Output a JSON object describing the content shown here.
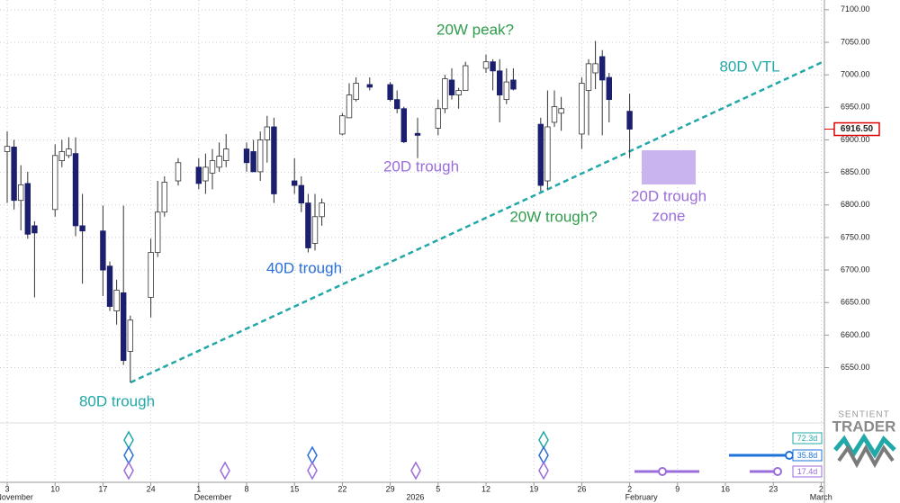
{
  "chart_data": {
    "type": "candlestick",
    "categories": [
      null,
      "3",
      null,
      null,
      null,
      null,
      null,
      null,
      "10",
      null,
      null,
      null,
      null,
      null,
      null,
      "17",
      null,
      null,
      null,
      null,
      null,
      null,
      "24",
      null,
      null,
      null,
      null,
      null,
      null,
      "1",
      null,
      null,
      null,
      null,
      null,
      null,
      "8",
      null,
      null,
      null,
      null,
      null,
      null,
      "15",
      null,
      null,
      null,
      null,
      null,
      null,
      "22",
      null,
      null,
      null,
      null,
      null,
      null,
      "29",
      null,
      null,
      null,
      null,
      null,
      null,
      "5",
      null,
      null,
      null,
      null,
      null,
      null,
      "12",
      null,
      null,
      null,
      null,
      null,
      null,
      "19",
      null,
      null,
      null,
      null,
      null,
      null,
      "26",
      null,
      null,
      null,
      null,
      null,
      null,
      "2",
      null,
      null,
      null,
      null,
      null,
      null,
      "9",
      null,
      null,
      null,
      null,
      null,
      null,
      "16",
      null,
      null,
      null,
      null,
      null,
      null,
      "23",
      null,
      null,
      null,
      null,
      null,
      null,
      "2"
    ],
    "months": [
      "November",
      null,
      null,
      null,
      null,
      null,
      null,
      null,
      null,
      null,
      null,
      null,
      null,
      null,
      null,
      null,
      null,
      null,
      null,
      null,
      null,
      null,
      null,
      null,
      null,
      null,
      null,
      null,
      null,
      "December",
      null,
      null,
      null,
      null,
      null,
      null,
      null,
      null,
      null,
      null,
      null,
      null,
      null,
      null,
      null,
      null,
      null,
      null,
      null,
      null,
      null,
      null,
      null,
      null,
      null,
      null,
      null,
      null,
      null,
      null,
      "2026",
      null,
      null,
      null,
      null,
      null,
      null,
      null,
      null,
      null,
      null,
      null,
      null,
      null,
      null,
      null,
      null,
      null,
      null,
      null,
      null,
      null,
      null,
      null,
      null,
      null,
      null,
      null,
      null,
      null,
      null,
      null,
      "February",
      null,
      null,
      null,
      null,
      null,
      null,
      null,
      null,
      null,
      null,
      null,
      null,
      null,
      null,
      null,
      null,
      null,
      null,
      null,
      null,
      null,
      null,
      null,
      null,
      null,
      null,
      "March",
      null
    ],
    "open": [
      null,
      6882,
      6889,
      6807,
      6833,
      6768,
      null,
      null,
      6793,
      6868,
      6876,
      6879,
      6768,
      null,
      null,
      6760,
      6706,
      6637,
      6665,
      6575,
      null,
      null,
      6658,
      6727,
      6789,
      null,
      6837,
      null,
      null,
      6858,
      6837,
      6849,
      6858,
      6868,
      null,
      null,
      6886,
      6882,
      6851,
      6900,
      6920,
      null,
      null,
      6837,
      6830,
      6803,
      6741,
      6782,
      null,
      null,
      6909,
      6934,
      6962,
      null,
      6985,
      null,
      null,
      6985,
      6962,
      6948,
      null,
      6910,
      null,
      null,
      6918,
      6948,
      6992,
      6969,
      6976,
      null,
      null,
      7010,
      7020,
      7006,
      6962,
      6992,
      null,
      null,
      null,
      6924,
      6837,
      6927,
      6941,
      null,
      null,
      6909,
      6976,
      7003,
      7028,
      6996,
      null,
      null,
      6944,
      null,
      null,
      null,
      null,
      null,
      null,
      null,
      null,
      null,
      null,
      null,
      null,
      null,
      null,
      null,
      null,
      null,
      null,
      null,
      null,
      null,
      null,
      null,
      null,
      null,
      null,
      null,
      null
    ],
    "high": [
      null,
      6913,
      6900,
      6861,
      6851,
      6775,
      null,
      null,
      6893,
      6900,
      6904,
      6904,
      6817,
      null,
      null,
      6799,
      6713,
      6685,
      6799,
      6630,
      null,
      null,
      6748,
      6837,
      6844,
      null,
      6872,
      null,
      null,
      6872,
      6879,
      6886,
      6896,
      6909,
      null,
      null,
      6896,
      6900,
      6913,
      6937,
      6934,
      null,
      null,
      6872,
      6844,
      6817,
      6817,
      6810,
      null,
      null,
      6941,
      6987,
      6996,
      null,
      6996,
      null,
      null,
      6989,
      6976,
      6951,
      null,
      6934,
      null,
      null,
      6962,
      7000,
      7010,
      6980,
      7020,
      null,
      null,
      7031,
      7024,
      7024,
      7010,
      7010,
      null,
      null,
      null,
      6934,
      6976,
      6976,
      6966,
      null,
      null,
      6996,
      7024,
      7052,
      7038,
      7003,
      null,
      null,
      6971,
      null,
      null,
      null,
      null,
      null,
      null,
      null,
      null,
      null,
      null,
      null,
      null,
      null,
      null,
      null,
      null,
      null,
      null,
      null,
      null,
      null,
      null,
      null,
      null,
      null,
      null,
      null,
      null
    ],
    "low": [
      null,
      6803,
      6793,
      6761,
      6748,
      6658,
      null,
      null,
      6782,
      6858,
      6872,
      6752,
      6679,
      null,
      null,
      6660,
      6637,
      6616,
      6554,
      6527,
      null,
      null,
      6627,
      6720,
      6782,
      null,
      6830,
      null,
      null,
      6824,
      6817,
      6824,
      6851,
      6858,
      null,
      null,
      6851,
      6851,
      6837,
      6865,
      6803,
      null,
      null,
      6817,
      6789,
      6727,
      6730,
      6768,
      null,
      null,
      6907,
      6934,
      6959,
      null,
      6976,
      null,
      null,
      6959,
      6941,
      6895,
      null,
      6872,
      null,
      null,
      6907,
      6941,
      6962,
      6948,
      6976,
      null,
      null,
      7003,
      6976,
      6927,
      6955,
      6976,
      null,
      null,
      null,
      6821,
      6824,
      6920,
      6914,
      null,
      null,
      6886,
      6907,
      6978,
      6907,
      6927,
      null,
      null,
      6872,
      null,
      null,
      null,
      null,
      null,
      null,
      null,
      null,
      null,
      null,
      null,
      null,
      null,
      null,
      null,
      null,
      null,
      null,
      null,
      null,
      null,
      null,
      null,
      null,
      null,
      null,
      null,
      null
    ],
    "close": [
      null,
      6890,
      6807,
      6831,
      6755,
      6757,
      null,
      null,
      6876,
      6882,
      6886,
      6768,
      6760,
      null,
      null,
      6700,
      6644,
      6669,
      6561,
      6623,
      null,
      null,
      6727,
      6789,
      6835,
      null,
      6865,
      null,
      null,
      6833,
      6858,
      6868,
      6875,
      6886,
      null,
      null,
      6865,
      6851,
      6900,
      6920,
      6817,
      null,
      null,
      6830,
      6803,
      6734,
      6782,
      6803,
      null,
      null,
      6937,
      6969,
      6987,
      null,
      6981,
      null,
      null,
      6962,
      6948,
      6897,
      null,
      6907,
      null,
      null,
      6948,
      6994,
      6969,
      6976,
      7014,
      null,
      null,
      7020,
      7006,
      6969,
      6989,
      6978,
      null,
      null,
      null,
      6830,
      6920,
      6951,
      6948,
      null,
      null,
      6987,
      7017,
      7017,
      6992,
      6962,
      null,
      null,
      6916.5,
      null,
      null,
      null,
      null,
      null,
      null,
      null,
      null,
      null,
      null,
      null,
      null,
      null,
      null,
      null,
      null,
      null,
      null,
      null,
      null,
      null,
      null,
      null,
      null,
      null,
      null,
      null,
      null
    ],
    "up_color": "#ffffff",
    "down_color": "#1b1f6e",
    "ylim": [
      6465,
      7115
    ],
    "yticks": [
      {
        "value": 6550,
        "label": "6550.00"
      },
      {
        "value": 6600,
        "label": "6600.00"
      },
      {
        "value": 6650,
        "label": "6650.00"
      },
      {
        "value": 6700,
        "label": "6700.00"
      },
      {
        "value": 6750,
        "label": "6750.00"
      },
      {
        "value": 6800,
        "label": "6800.00"
      },
      {
        "value": 6850,
        "label": "6850.00"
      },
      {
        "value": 6900,
        "label": "6900.00"
      },
      {
        "value": 6950,
        "label": "6950.00"
      },
      {
        "value": 7000,
        "label": "7000.00"
      },
      {
        "value": 7050,
        "label": "7050.00"
      },
      {
        "value": 7100,
        "label": "7100.00"
      }
    ],
    "last_price": {
      "value": 6916.5,
      "label": "6916.50"
    },
    "grid": true,
    "annotations": [
      "20W peak?",
      "80D VTL",
      "20D trough",
      "40D trough",
      "20W trough?",
      "20D trough",
      "zone",
      "80D trough"
    ],
    "cycle_labels": [
      "72.3d",
      "35.8d",
      "17.4d"
    ]
  },
  "logo": {
    "line1": "SENTIENT",
    "line2": "TRADER"
  }
}
